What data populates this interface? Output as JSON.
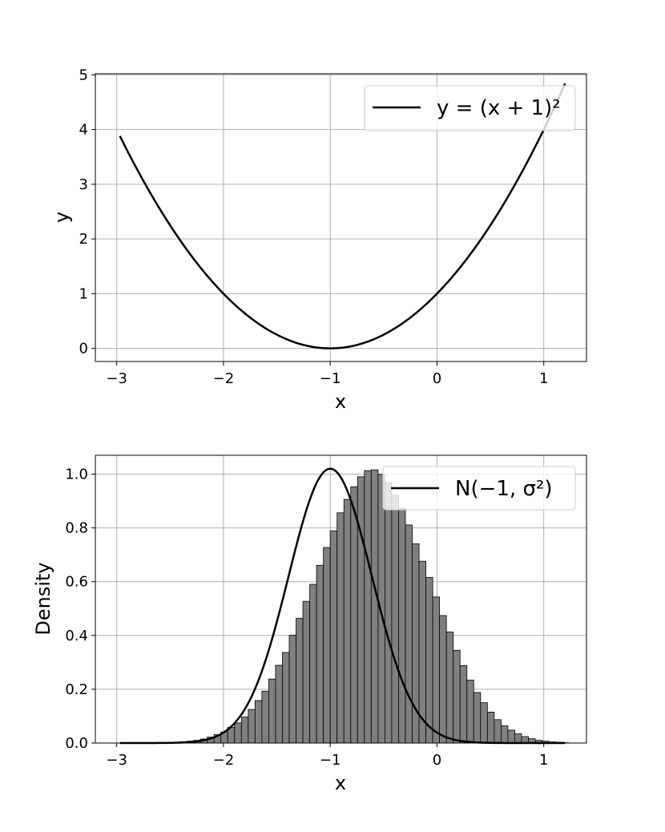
{
  "chart_data": [
    {
      "type": "line",
      "xlabel": "x",
      "ylabel": "y",
      "xlim": [
        -3.2,
        1.4
      ],
      "ylim": [
        -0.24,
        5.02
      ],
      "xticks": [
        -3,
        -2,
        -1,
        0,
        1
      ],
      "xtick_labels": [
        "−3",
        "−2",
        "−1",
        "0",
        "1"
      ],
      "yticks": [
        0,
        1,
        2,
        3,
        4,
        5
      ],
      "ytick_labels": [
        "0",
        "1",
        "2",
        "3",
        "4",
        "5"
      ],
      "grid": true,
      "legend_position": "upper-right",
      "series": [
        {
          "name": "y = (x + 1)²",
          "color": "#000000",
          "x_range": [
            -2.97,
            1.2
          ],
          "x": [
            -2.97,
            -2.75,
            -2.5,
            -2.25,
            -2.0,
            -1.75,
            -1.5,
            -1.25,
            -1.0,
            -0.75,
            -0.5,
            -0.25,
            0.0,
            0.25,
            0.5,
            0.75,
            1.0,
            1.2
          ],
          "y": [
            3.88,
            3.06,
            2.25,
            1.56,
            1.0,
            0.56,
            0.25,
            0.06,
            0.0,
            0.06,
            0.25,
            0.56,
            1.0,
            1.56,
            2.25,
            3.06,
            4.0,
            4.84
          ]
        }
      ]
    },
    {
      "type": "bar",
      "subtype": "histogram",
      "xlabel": "x",
      "ylabel": "Density",
      "xlim": [
        -3.2,
        1.4
      ],
      "ylim": [
        0,
        1.07
      ],
      "xticks": [
        -3,
        -2,
        -1,
        0,
        1
      ],
      "xtick_labels": [
        "−3",
        "−2",
        "−1",
        "0",
        "1"
      ],
      "yticks": [
        0.0,
        0.2,
        0.4,
        0.6,
        0.8,
        1.0
      ],
      "ytick_labels": [
        "0.0",
        "0.2",
        "0.4",
        "0.6",
        "0.8",
        "1.0"
      ],
      "grid": true,
      "legend_position": "upper-right",
      "histogram": {
        "color": "#808080",
        "edgecolor": "#000000",
        "bin_start": -2.6,
        "bin_width": 0.064,
        "values": [
          0.001,
          0.002,
          0.003,
          0.005,
          0.007,
          0.01,
          0.015,
          0.022,
          0.031,
          0.041,
          0.058,
          0.075,
          0.097,
          0.125,
          0.158,
          0.193,
          0.238,
          0.289,
          0.337,
          0.401,
          0.464,
          0.527,
          0.59,
          0.661,
          0.727,
          0.789,
          0.856,
          0.906,
          0.953,
          0.99,
          1.013,
          1.016,
          0.999,
          0.968,
          0.921,
          0.872,
          0.811,
          0.741,
          0.676,
          0.616,
          0.543,
          0.474,
          0.413,
          0.345,
          0.288,
          0.234,
          0.188,
          0.15,
          0.115,
          0.087,
          0.064,
          0.048,
          0.034,
          0.024,
          0.016,
          0.01,
          0.007,
          0.004,
          0.003,
          0.001
        ]
      },
      "series": [
        {
          "name": "N(−1, σ²)",
          "color": "#000000",
          "mean": -1,
          "peak_density": 1.02,
          "x_range": [
            -2.97,
            1.2
          ]
        }
      ]
    }
  ]
}
